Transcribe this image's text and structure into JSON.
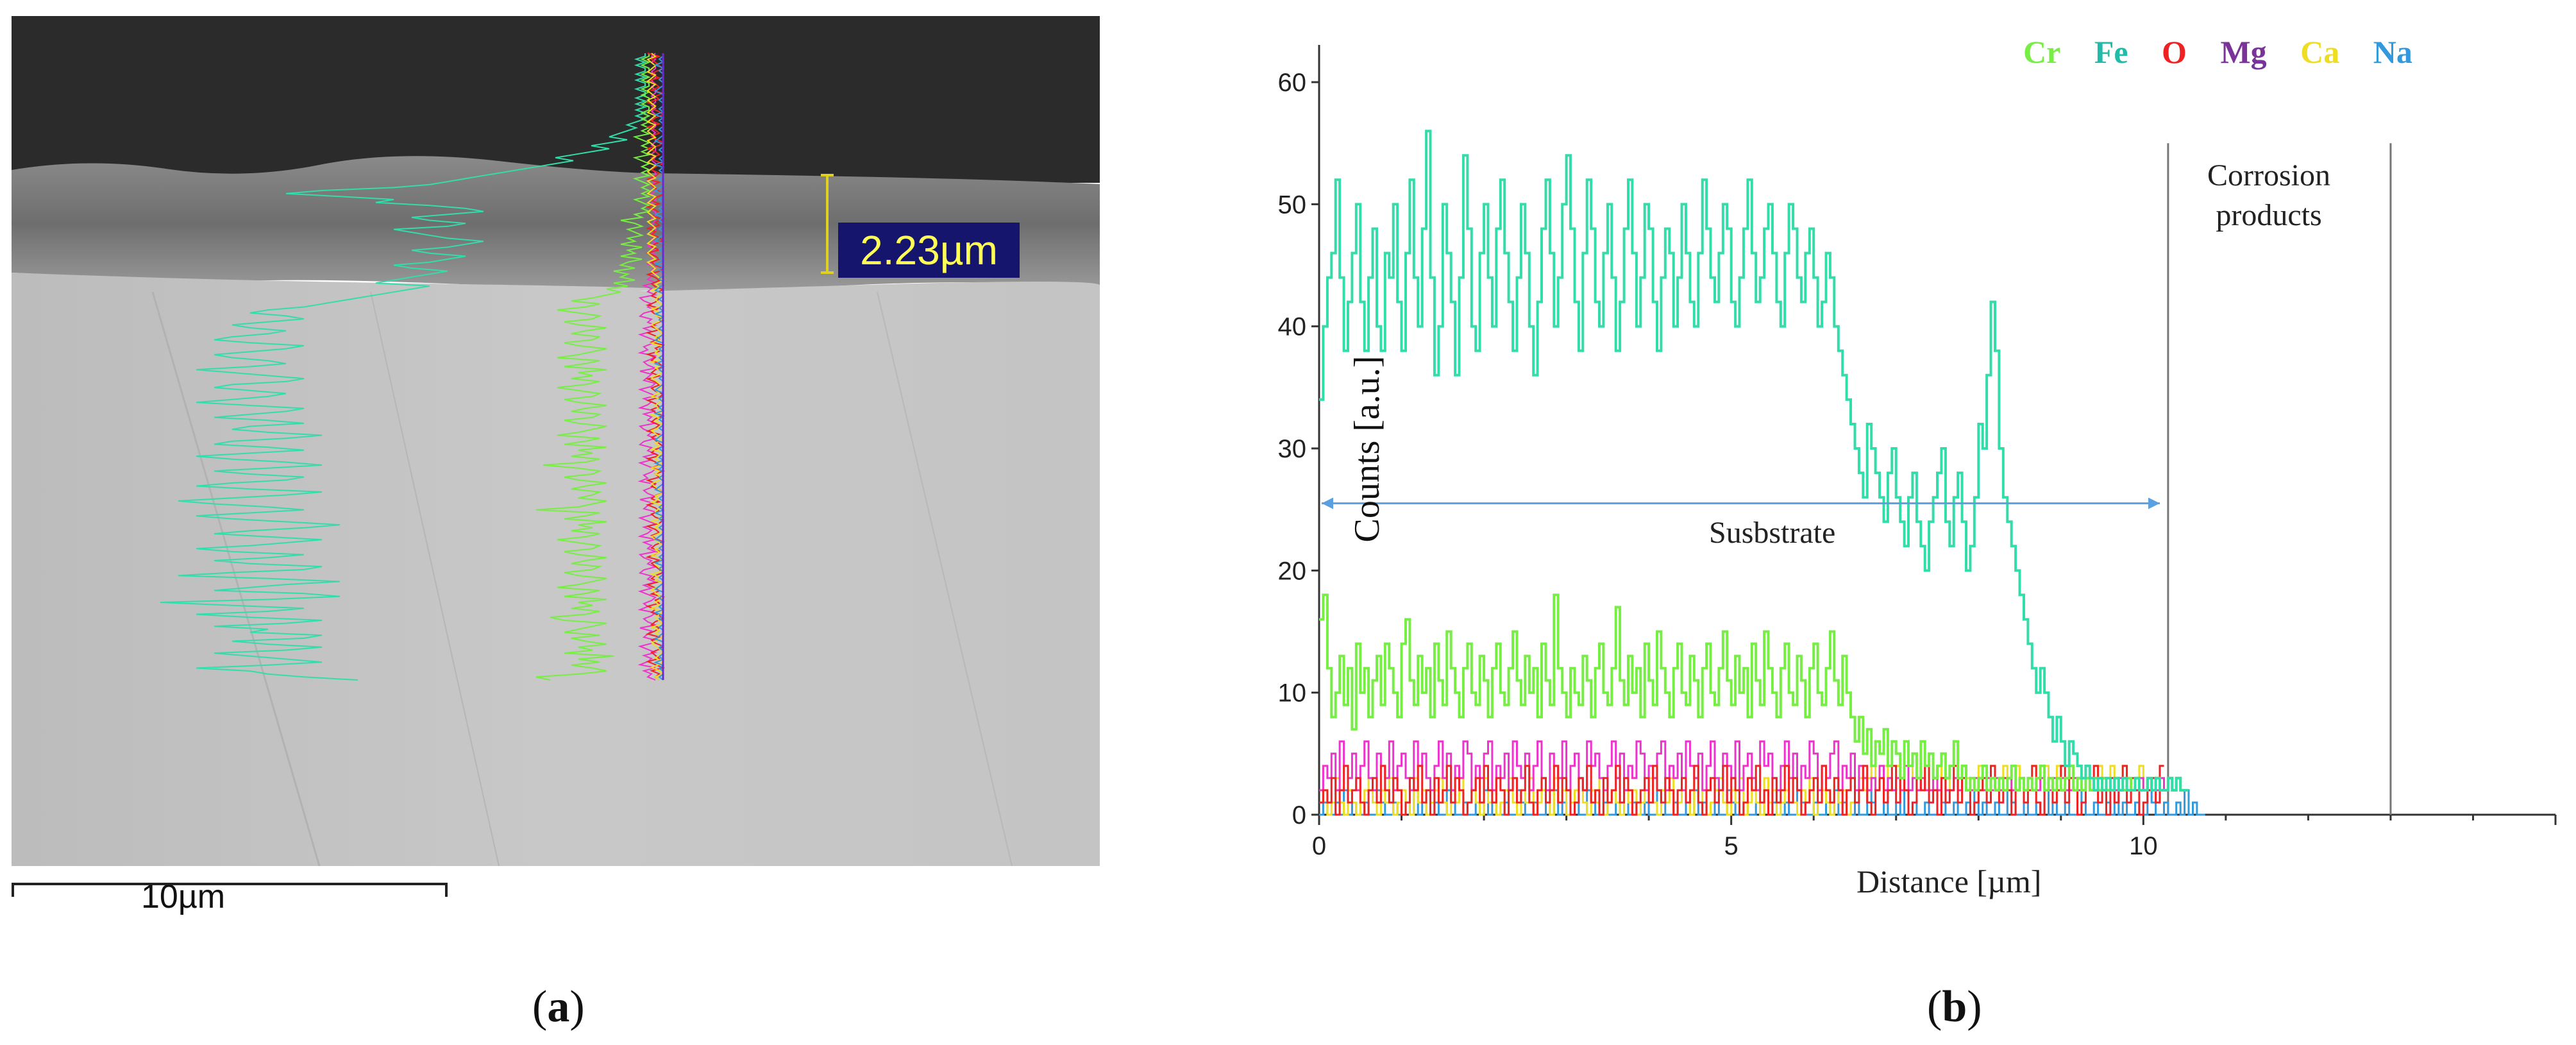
{
  "panel_a": {
    "thickness_label": "2.23µm",
    "scale_bar_label": "10µm",
    "caption_open": "(",
    "caption_letter": "a",
    "caption_close": ")"
  },
  "panel_b": {
    "caption_open": "(",
    "caption_letter": "b",
    "caption_close": ")"
  },
  "chart_data": {
    "type": "line",
    "title": "",
    "xlabel": "Distance [µm]",
    "ylabel": "Counts [a.u.]",
    "xlim": [
      0,
      15
    ],
    "ylim": [
      0,
      62
    ],
    "xticks": [
      0,
      5,
      10
    ],
    "yticks": [
      0,
      10,
      20,
      30,
      40,
      50,
      60
    ],
    "legend_position": "top-right",
    "legend": [
      {
        "name": "Cr",
        "color": "#66ee44"
      },
      {
        "name": "Fe",
        "color": "#22ccaa"
      },
      {
        "name": "O",
        "color": "#ee2222"
      },
      {
        "name": "Mg",
        "color": "#8833aa"
      },
      {
        "name": "Ca",
        "color": "#eedd22"
      },
      {
        "name": "Na",
        "color": "#3399dd"
      }
    ],
    "annotations": {
      "substrate_label": "Susbstrate",
      "substrate_arrow_y": 25.5,
      "substrate_arrow_x": [
        0,
        10.2
      ],
      "corrosion_label_line1": "Corrosion",
      "corrosion_label_line2": "products",
      "corrosion_bounds_x": [
        10.3,
        13.0
      ]
    },
    "series": [
      {
        "name": "Fe",
        "color": "#33ddaa",
        "x_step": 0.05,
        "values": [
          34,
          40,
          44,
          46,
          52,
          44,
          38,
          42,
          46,
          50,
          42,
          38,
          44,
          48,
          40,
          38,
          46,
          44,
          50,
          42,
          38,
          46,
          52,
          44,
          40,
          48,
          56,
          44,
          36,
          40,
          50,
          46,
          42,
          36,
          44,
          54,
          48,
          40,
          38,
          46,
          50,
          44,
          40,
          48,
          52,
          46,
          42,
          38,
          44,
          50,
          46,
          40,
          36,
          42,
          48,
          52,
          46,
          40,
          44,
          50,
          54,
          48,
          42,
          38,
          46,
          52,
          48,
          42,
          40,
          46,
          50,
          44,
          38,
          42,
          48,
          52,
          46,
          40,
          44,
          50,
          48,
          42,
          38,
          44,
          48,
          46,
          40,
          44,
          50,
          46,
          42,
          40,
          46,
          52,
          48,
          44,
          42,
          46,
          50,
          48,
          42,
          40,
          44,
          48,
          52,
          46,
          42,
          44,
          48,
          50,
          46,
          42,
          40,
          46,
          50,
          48,
          44,
          42,
          46,
          48,
          44,
          40,
          42,
          46,
          44,
          40,
          38,
          36,
          34,
          32,
          30,
          28,
          26,
          32,
          30,
          28,
          26,
          24,
          28,
          30,
          26,
          24,
          22,
          26,
          28,
          24,
          22,
          20,
          24,
          26,
          28,
          30,
          24,
          22,
          26,
          28,
          24,
          20,
          22,
          26,
          32,
          30,
          36,
          42,
          38,
          30,
          26,
          24,
          22,
          20,
          18,
          16,
          14,
          12,
          10,
          12,
          10,
          8,
          6,
          8,
          6,
          4,
          6,
          5,
          4,
          3,
          4,
          3,
          2,
          3,
          2,
          3,
          2,
          3,
          2,
          3,
          2,
          2,
          3,
          2,
          2,
          3,
          2,
          3,
          2,
          2,
          3,
          2,
          3,
          2,
          2
        ]
      },
      {
        "name": "Cr",
        "color": "#77ee44",
        "x_step": 0.05,
        "values": [
          16,
          18,
          12,
          8,
          10,
          13,
          9,
          12,
          7,
          14,
          10,
          12,
          8,
          11,
          13,
          9,
          14,
          12,
          10,
          8,
          14,
          16,
          11,
          9,
          13,
          10,
          12,
          8,
          14,
          11,
          9,
          15,
          12,
          10,
          8,
          12,
          14,
          10,
          9,
          13,
          11,
          8,
          12,
          14,
          10,
          9,
          12,
          15,
          11,
          9,
          13,
          10,
          12,
          8,
          14,
          11,
          9,
          18,
          12,
          10,
          8,
          12,
          10,
          9,
          13,
          11,
          8,
          12,
          14,
          10,
          9,
          12,
          17,
          11,
          9,
          13,
          10,
          12,
          8,
          14,
          11,
          9,
          15,
          12,
          10,
          8,
          12,
          14,
          10,
          9,
          13,
          11,
          8,
          12,
          14,
          10,
          9,
          12,
          15,
          11,
          9,
          13,
          10,
          12,
          8,
          14,
          11,
          9,
          15,
          12,
          10,
          8,
          12,
          14,
          10,
          9,
          13,
          11,
          8,
          12,
          14,
          10,
          9,
          12,
          15,
          11,
          9,
          13,
          10,
          8,
          6,
          8,
          5,
          7,
          4,
          6,
          5,
          7,
          4,
          6,
          5,
          3,
          6,
          4,
          5,
          3,
          6,
          4,
          5,
          3,
          4,
          5,
          3,
          4,
          6,
          3,
          4,
          2,
          3,
          2,
          3,
          4,
          2,
          3,
          2,
          3,
          2,
          3,
          4,
          2,
          3,
          2,
          3,
          2,
          3,
          4,
          2,
          3,
          2,
          3,
          2,
          3,
          4,
          2,
          3,
          2,
          3,
          2,
          3,
          2,
          3,
          2,
          2,
          3,
          2,
          2,
          3,
          2,
          3,
          2,
          2,
          3,
          2,
          3,
          2,
          2,
          3,
          2,
          3,
          2,
          2
        ]
      },
      {
        "name": "O",
        "color": "#ee2222",
        "x_step": 0.05,
        "values": [
          1,
          2,
          1,
          3,
          0,
          2,
          4,
          1,
          2,
          3,
          1,
          0,
          2,
          3,
          1,
          4,
          2,
          1,
          3,
          2,
          0,
          1,
          3,
          2,
          4,
          1,
          2,
          0,
          3,
          1,
          2,
          4,
          1,
          3,
          2,
          0,
          1,
          2,
          3,
          1,
          4,
          2,
          1,
          3,
          2,
          0,
          2,
          3,
          1,
          2,
          4,
          1,
          0,
          2,
          3,
          1,
          2,
          4,
          1,
          3,
          2,
          0,
          1,
          3,
          2,
          4,
          1,
          2,
          0,
          3,
          1,
          2,
          4,
          1,
          3,
          2,
          0,
          1,
          2,
          3,
          1,
          4,
          2,
          1,
          3,
          2,
          0,
          2,
          3,
          1,
          2,
          4,
          1,
          0,
          2,
          3,
          1,
          2,
          4,
          1,
          3,
          2,
          0,
          1,
          3,
          2,
          4,
          1,
          2,
          0,
          3,
          1,
          2,
          4,
          1,
          3,
          2,
          0,
          1,
          2,
          3,
          1,
          4,
          2,
          1,
          3,
          2,
          0,
          2,
          3,
          1,
          2,
          4,
          1,
          0,
          2,
          3,
          1,
          2,
          4,
          1,
          3,
          2,
          0,
          1,
          3,
          2,
          4,
          1,
          2,
          0,
          3,
          1,
          2,
          4,
          1,
          3,
          2,
          0,
          1,
          2,
          3,
          1,
          4,
          2,
          1,
          3,
          2,
          0,
          2,
          3,
          1,
          2,
          4,
          1,
          0,
          2,
          3,
          1,
          2,
          4,
          1,
          3,
          2,
          0,
          1,
          3,
          2,
          4,
          1,
          2,
          0,
          3,
          1,
          2,
          4,
          1,
          3,
          2,
          0,
          1,
          2,
          3,
          1,
          4
        ]
      },
      {
        "name": "Mg",
        "color": "#ee33cc",
        "x_step": 0.05,
        "values": [
          2,
          4,
          3,
          5,
          2,
          6,
          4,
          3,
          5,
          2,
          4,
          6,
          3,
          2,
          5,
          4,
          3,
          6,
          2,
          4,
          5,
          3,
          2,
          6,
          4,
          5,
          3,
          2,
          4,
          6,
          3,
          5,
          2,
          4,
          3,
          6,
          5,
          2,
          4,
          3,
          5,
          6,
          2,
          4,
          3,
          5,
          2,
          6,
          4,
          3,
          5,
          2,
          4,
          6,
          3,
          2,
          5,
          4,
          3,
          6,
          2,
          4,
          5,
          3,
          2,
          6,
          4,
          5,
          3,
          2,
          4,
          6,
          3,
          5,
          2,
          4,
          3,
          6,
          5,
          2,
          4,
          3,
          5,
          6,
          2,
          4,
          3,
          5,
          2,
          6,
          4,
          3,
          5,
          2,
          4,
          6,
          3,
          2,
          5,
          4,
          3,
          6,
          2,
          4,
          5,
          3,
          2,
          6,
          4,
          5,
          3,
          2,
          4,
          6,
          3,
          5,
          2,
          4,
          3,
          6,
          5,
          2,
          4,
          3,
          5,
          6,
          2,
          4,
          3,
          5,
          2,
          4,
          3,
          2,
          3,
          2,
          4,
          2,
          3,
          2,
          3,
          2,
          4,
          2,
          3,
          2,
          3,
          2,
          2,
          3,
          2,
          3,
          2,
          2,
          3,
          2,
          3,
          2,
          2,
          3,
          2,
          2,
          3,
          2,
          3,
          2,
          2,
          3,
          2,
          2,
          3,
          2,
          3,
          2,
          2,
          3,
          2,
          2,
          3,
          2,
          3,
          2,
          2,
          3,
          2,
          2,
          3,
          2,
          3,
          2,
          2,
          3,
          2,
          2,
          3,
          2,
          3,
          2,
          2,
          3,
          2,
          2,
          3,
          2,
          3,
          2
        ]
      },
      {
        "name": "Ca",
        "color": "#eedd22",
        "x_step": 0.05,
        "values": [
          1,
          2,
          0,
          1,
          3,
          1,
          0,
          2,
          1,
          0,
          1,
          2,
          3,
          1,
          0,
          2,
          1,
          3,
          0,
          1,
          2,
          1,
          0,
          3,
          1,
          2,
          0,
          1,
          2,
          3,
          1,
          0,
          2,
          1,
          3,
          0,
          1,
          2,
          1,
          0,
          3,
          1,
          2,
          0,
          1,
          2,
          3,
          1,
          0,
          2,
          1,
          3,
          0,
          1,
          2,
          1,
          0,
          3,
          1,
          2,
          0,
          1,
          2,
          3,
          1,
          0,
          2,
          1,
          3,
          0,
          1,
          2,
          1,
          0,
          3,
          1,
          2,
          0,
          1,
          2,
          3,
          1,
          0,
          2,
          1,
          3,
          0,
          1,
          2,
          1,
          0,
          3,
          1,
          2,
          0,
          1,
          2,
          3,
          1,
          0,
          2,
          1,
          3,
          0,
          1,
          2,
          1,
          0,
          3,
          1,
          2,
          0,
          1,
          2,
          3,
          1,
          0,
          2,
          1,
          3,
          0,
          1,
          2,
          1,
          0,
          3,
          1,
          2,
          0,
          1,
          2,
          3,
          2,
          3,
          4,
          2,
          3,
          4,
          3,
          2,
          4,
          3,
          2,
          4,
          3,
          2,
          3,
          4,
          2,
          3,
          4,
          3,
          2,
          4,
          3,
          2,
          4,
          3,
          2,
          3,
          4,
          2,
          3,
          4,
          3,
          2,
          4,
          3,
          2,
          4,
          3,
          2,
          3,
          4,
          2,
          3,
          4,
          3,
          2,
          4,
          3,
          2,
          4,
          3,
          2,
          3,
          4,
          2,
          3,
          4,
          3,
          2,
          4,
          3,
          2,
          4,
          3,
          2,
          3,
          4,
          2,
          3
        ]
      },
      {
        "name": "Na",
        "color": "#3399dd",
        "x_step": 0.05,
        "values": [
          0,
          1,
          0,
          0,
          1,
          0,
          2,
          0,
          1,
          0,
          0,
          1,
          0,
          0,
          2,
          1,
          0,
          0,
          1,
          0,
          0,
          1,
          0,
          2,
          0,
          1,
          0,
          0,
          1,
          0,
          0,
          2,
          1,
          0,
          0,
          1,
          0,
          0,
          1,
          0,
          2,
          0,
          1,
          0,
          0,
          1,
          0,
          0,
          2,
          1,
          0,
          0,
          1,
          0,
          0,
          1,
          0,
          2,
          0,
          1,
          0,
          0,
          1,
          0,
          0,
          2,
          1,
          0,
          0,
          1,
          0,
          0,
          1,
          0,
          2,
          0,
          1,
          0,
          0,
          1,
          0,
          0,
          2,
          1,
          0,
          0,
          1,
          0,
          0,
          1,
          0,
          2,
          0,
          1,
          0,
          0,
          1,
          0,
          0,
          2,
          1,
          0,
          0,
          1,
          0,
          0,
          1,
          0,
          2,
          0,
          1,
          0,
          0,
          1,
          0,
          0,
          2,
          1,
          0,
          0,
          1,
          0,
          0,
          1,
          0,
          2,
          0,
          1,
          0,
          0,
          1,
          0,
          0,
          2,
          1,
          0,
          0,
          1,
          0,
          0,
          1,
          0,
          2,
          0,
          1,
          0,
          0,
          1,
          0,
          0,
          2,
          1,
          0,
          0,
          1,
          0,
          0,
          1,
          0,
          2,
          0,
          1,
          0,
          0,
          1,
          0,
          0,
          2,
          1,
          0,
          0,
          1,
          0,
          0,
          1,
          0,
          2,
          0,
          1,
          0,
          0,
          1,
          0,
          0,
          2,
          1,
          0,
          0,
          1,
          0,
          0,
          1,
          0,
          2,
          0,
          1,
          0,
          0,
          1,
          0,
          0,
          2,
          1,
          0,
          0,
          1,
          0,
          0,
          1,
          0,
          2,
          0,
          1,
          0,
          0
        ]
      }
    ]
  }
}
